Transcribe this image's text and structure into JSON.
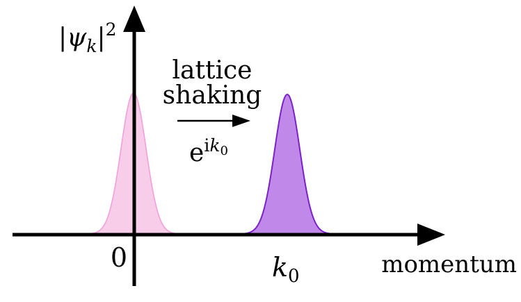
{
  "y_axis_label": {
    "bar_left": "|",
    "psi": "ψ",
    "subscript": "k",
    "bar_right": "|",
    "superscript": "2"
  },
  "x_axis_label": "momentum",
  "origin_label": "0",
  "k0_label": {
    "main": "k",
    "subscript": "0"
  },
  "transition": {
    "line1": "lattice",
    "line2": "shaking",
    "phase": {
      "base": "e",
      "exp_i": "i",
      "exp_k": "k",
      "exp_sub": "0"
    }
  },
  "peaks": [
    {
      "position": "0",
      "fill": "#f7cdea",
      "stroke": "#f0a0dc"
    },
    {
      "position": "k0",
      "fill": "#c088e8",
      "stroke": "#7a22c8"
    }
  ],
  "colors": {
    "axis": "#000000"
  }
}
